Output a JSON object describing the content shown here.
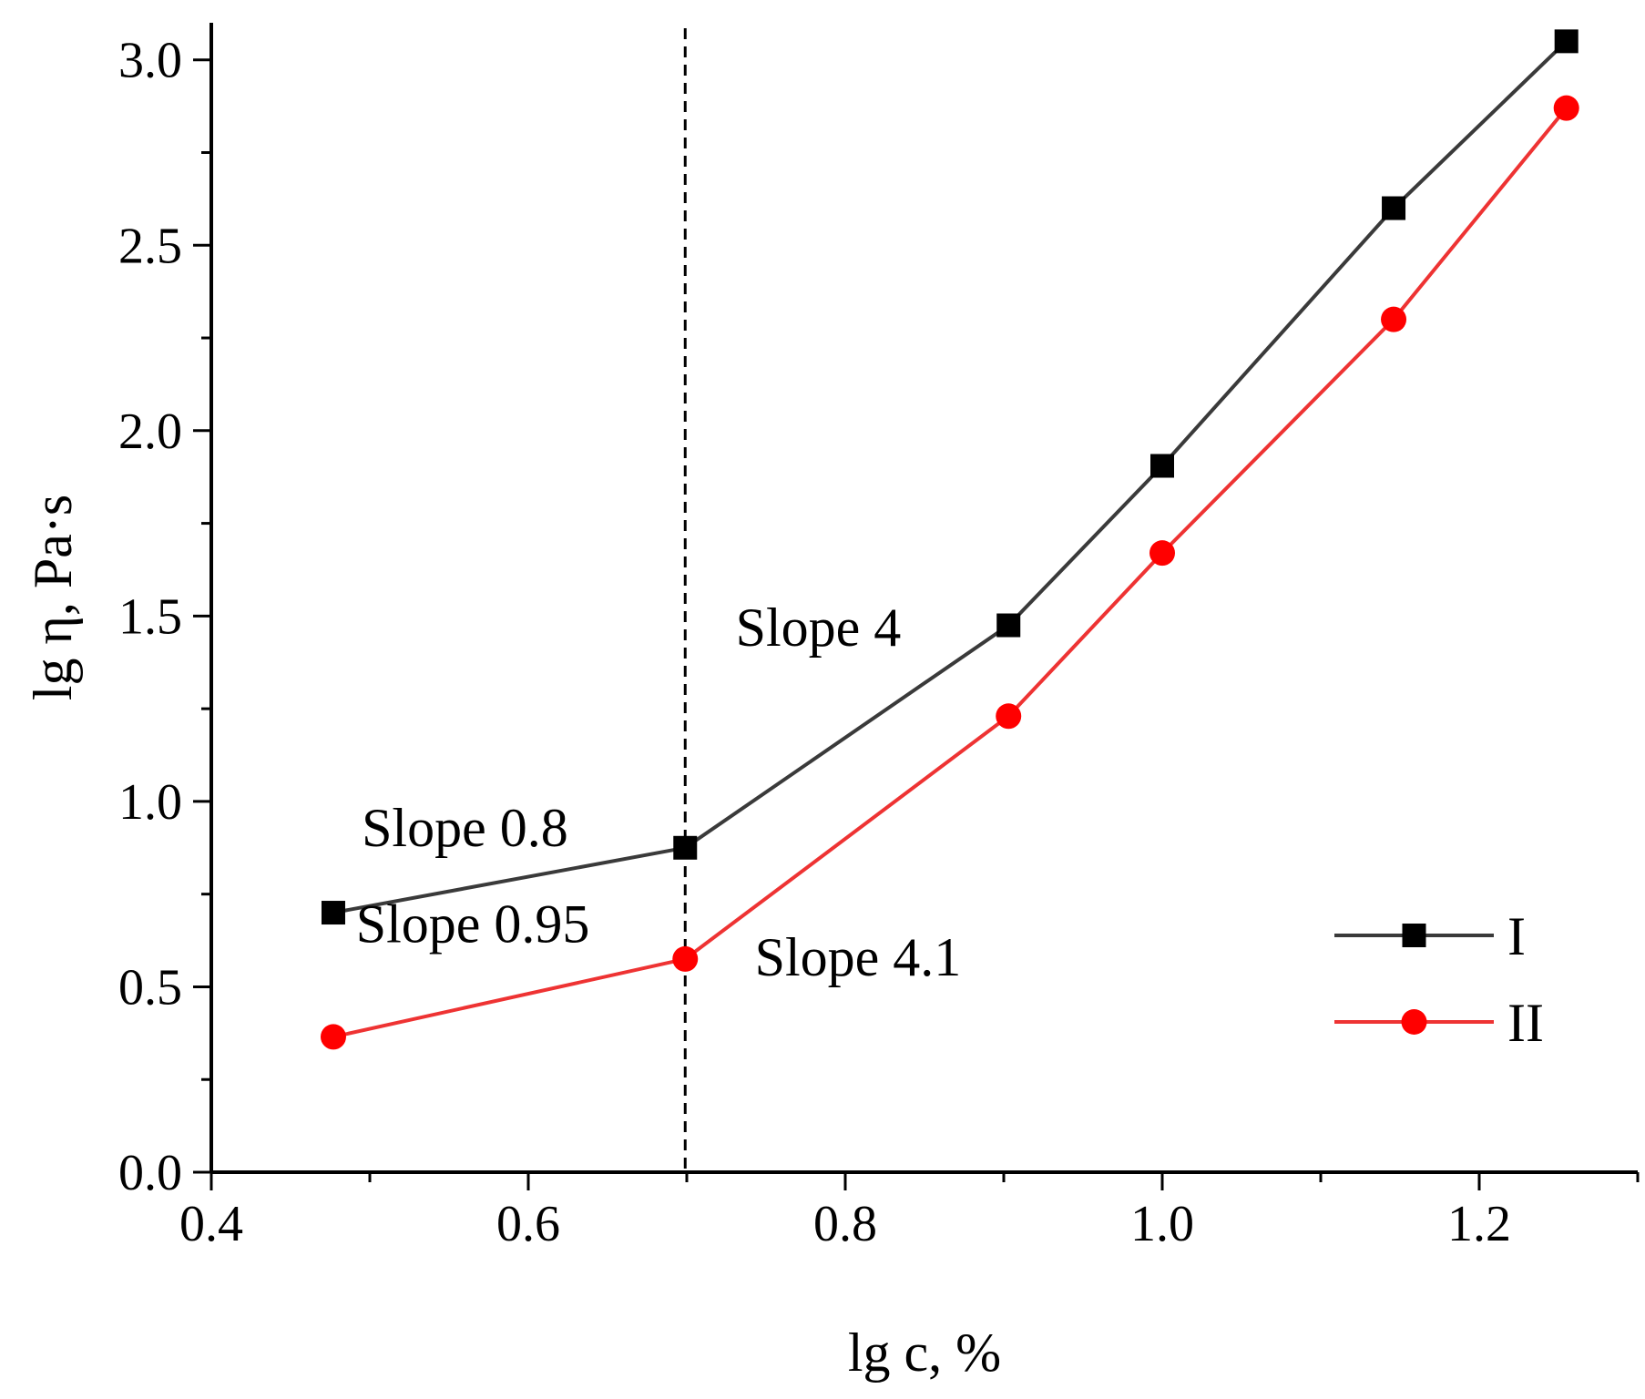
{
  "chart_data": {
    "type": "line",
    "title": "",
    "xlabel": "lg c, %",
    "ylabel": "lg η, Pa·s",
    "xlim": [
      0.4,
      1.3
    ],
    "ylim": [
      0.0,
      3.1
    ],
    "xticks": [
      0.4,
      0.6,
      0.8,
      1.0,
      1.2
    ],
    "xtick_labels": [
      "0.4",
      "0.6",
      "0.8",
      "1.0",
      "1.2"
    ],
    "yticks": [
      0.0,
      0.5,
      1.0,
      1.5,
      2.0,
      2.5,
      3.0
    ],
    "ytick_labels": [
      "0.0",
      "0.5",
      "1.0",
      "1.5",
      "2.0",
      "2.5",
      "3.0"
    ],
    "grid": false,
    "legend_position": "bottom-right",
    "vline": {
      "x": 0.699,
      "style": "dashed"
    },
    "series": [
      {
        "name": "I",
        "color": "#3a3a3a",
        "marker_color": "#000000",
        "marker": "square",
        "x": [
          0.477,
          0.699,
          0.903,
          1.0,
          1.146,
          1.255
        ],
        "y": [
          0.7,
          0.875,
          1.475,
          1.905,
          2.6,
          3.05
        ]
      },
      {
        "name": "II",
        "color": "#ee3333",
        "marker_color": "#ff0000",
        "marker": "circle",
        "x": [
          0.477,
          0.699,
          0.903,
          1.0,
          1.146,
          1.255
        ],
        "y": [
          0.365,
          0.575,
          1.23,
          1.67,
          2.3,
          2.87
        ]
      }
    ],
    "annotations": [
      {
        "text": "Slope 0.8",
        "x": 0.56,
        "y": 0.88
      },
      {
        "text": "Slope 0.95",
        "x": 0.565,
        "y": 0.62
      },
      {
        "text": "Slope 4",
        "x": 0.783,
        "y": 1.42
      },
      {
        "text": "Slope 4.1",
        "x": 0.808,
        "y": 0.53
      }
    ]
  }
}
